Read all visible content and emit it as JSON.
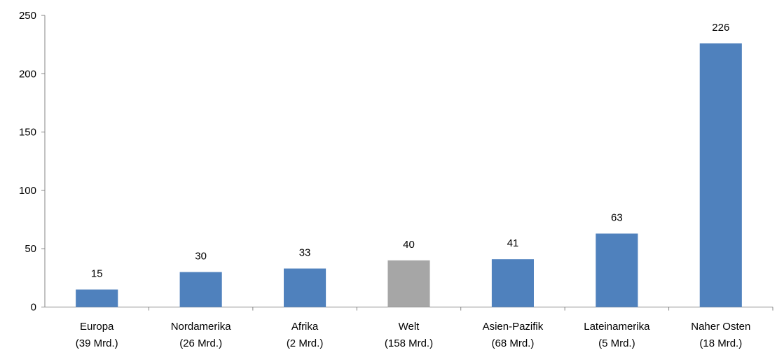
{
  "chart_data": {
    "type": "bar",
    "categories": [
      [
        "Europa",
        "(39 Mrd.)"
      ],
      [
        "Nordamerika",
        "(26 Mrd.)"
      ],
      [
        "Afrika",
        "(2 Mrd.)"
      ],
      [
        "Welt",
        "(158 Mrd.)"
      ],
      [
        "Asien-Pazifik",
        "(68 Mrd.)"
      ],
      [
        "Lateinamerika",
        "(5 Mrd.)"
      ],
      [
        "Naher Osten",
        "(18 Mrd.)"
      ]
    ],
    "values": [
      15,
      30,
      33,
      40,
      41,
      63,
      226
    ],
    "data_labels": [
      "15",
      "30",
      "33",
      "40",
      "41",
      "63",
      "226"
    ],
    "bar_colors": [
      "#4F81BD",
      "#4F81BD",
      "#4F81BD",
      "#A6A6A6",
      "#4F81BD",
      "#4F81BD",
      "#4F81BD"
    ],
    "ylim": [
      0,
      250
    ],
    "yticks": [
      0,
      50,
      100,
      150,
      200,
      250
    ],
    "grid": false,
    "title": "",
    "xlabel": "",
    "ylabel": ""
  }
}
